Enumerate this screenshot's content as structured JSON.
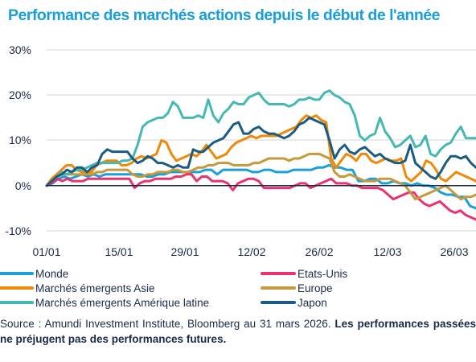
{
  "title": "Performance des marchés actions depuis le début de l'année",
  "source_prefix": "Source : Amundi Investment Institute, Bloomberg au 31 mars 2026. ",
  "source_bold": "Les performances passées ne préjugent pas des performances futures.",
  "chart_data": {
    "type": "line",
    "x_ticks": [
      "01/01",
      "15/01",
      "29/01",
      "12/02",
      "26/02",
      "12/03",
      "26/03"
    ],
    "y_ticks": [
      "30%",
      "20%",
      "10%",
      "0%",
      "-10%"
    ],
    "ylim": [
      -10,
      30
    ],
    "grid": "horizontal",
    "legend_position": "bottom",
    "series": [
      {
        "name": "Monde",
        "color": "#1a9fd8",
        "values": [
          0,
          0.5,
          1.5,
          2,
          1.5,
          2,
          2.5,
          2,
          2.5,
          2,
          2.5,
          2.5,
          2.5,
          2.5,
          2.5,
          2.5,
          2.5,
          2,
          2,
          2.5,
          2.5,
          3,
          3,
          3,
          3,
          3,
          3,
          3.5,
          3.5,
          2.5,
          3.5,
          3.5,
          3.5,
          3.5,
          3.5,
          3,
          3,
          3.5,
          3.5,
          3,
          3,
          3,
          3.5,
          3.5,
          3.5,
          3.5,
          4,
          4,
          4.5,
          4,
          4,
          3.5,
          3.5,
          1,
          1,
          1.5,
          1.5,
          0.5,
          0.5,
          1,
          0.5,
          0.5,
          0,
          0.5,
          0,
          0,
          -0.5,
          -1.5,
          -2,
          -2,
          -2.5,
          -2.5,
          -4.5,
          -5
        ]
      },
      {
        "name": "Etats-Unis",
        "color": "#e8336e",
        "values": [
          0,
          0.5,
          1.5,
          1,
          1.5,
          1,
          1,
          1,
          1.5,
          1.5,
          1.5,
          1.5,
          1.5,
          1.5,
          1.5,
          1.5,
          1.5,
          -0.5,
          0.5,
          1,
          1,
          1.5,
          1.5,
          1.5,
          1.5,
          2,
          2,
          2.5,
          2.5,
          1,
          2,
          2,
          1,
          1,
          1,
          0.5,
          -1,
          0.5,
          1,
          1.5,
          1.5,
          1,
          -0.5,
          -0.5,
          -0.5,
          -0.5,
          -0.5,
          -0.5,
          0,
          0.5,
          0.5,
          -0.5,
          0,
          0.5,
          1,
          1.5,
          0.5,
          0.5,
          0.5,
          0,
          0,
          -0.5,
          -0.5,
          -0.5,
          -0.5,
          -1,
          -2,
          -3,
          -2.5,
          -2,
          -1.5,
          -1.5,
          -3,
          -4,
          -4.5,
          -4,
          -3.5,
          -4.5,
          -5.5,
          -6,
          -5.5,
          -6.5,
          -7,
          -7.5
        ]
      },
      {
        "name": "Marchés émergents Asie",
        "color": "#f0880a",
        "values": [
          0,
          1.5,
          2.5,
          3.5,
          4.5,
          4.5,
          3.5,
          3,
          3,
          3,
          4.5,
          5,
          5.5,
          5.5,
          5.5,
          4.5,
          4.5,
          5,
          6,
          6.5,
          6,
          6.5,
          7,
          10,
          9.5,
          7,
          5.5,
          6,
          6.5,
          7,
          6.5,
          7.5,
          9,
          7.5,
          6,
          6.5,
          7,
          8.5,
          9.5,
          10,
          10.5,
          11,
          10.5,
          11,
          11,
          11,
          11,
          11.5,
          12,
          12.5,
          13,
          14.5,
          15.5,
          15,
          15.5,
          14.5,
          14,
          6,
          4,
          5.5,
          7,
          6.5,
          5.5,
          7,
          7,
          5.5,
          5,
          5.5,
          6,
          5.5,
          5.5,
          6,
          2,
          1,
          2,
          3,
          5.5,
          5,
          3.5,
          1.5,
          1,
          2,
          3,
          2.5,
          2,
          1.5,
          1
        ]
      },
      {
        "name": "Europe",
        "color": "#c49a3c",
        "values": [
          0,
          1,
          2,
          2.5,
          2.5,
          2.5,
          2.5,
          2.5,
          2.5,
          2.5,
          3,
          3,
          3.5,
          3.5,
          3.5,
          3.5,
          3.5,
          2.5,
          2,
          2,
          2.5,
          2.5,
          3,
          3,
          3,
          3.5,
          3.5,
          3,
          3,
          3.5,
          4,
          4,
          4.5,
          4.5,
          5,
          5,
          5,
          4.5,
          4.5,
          4.5,
          4.5,
          5,
          5,
          5.5,
          6,
          6,
          6,
          6,
          5.5,
          6,
          6,
          6.5,
          7,
          7,
          7,
          6.5,
          6,
          3,
          2,
          2,
          2.5,
          2,
          1.5,
          1,
          1,
          1,
          1.5,
          1.5,
          1.5,
          1,
          0.5,
          0,
          -1.5,
          -3,
          -2.5,
          -2,
          -1.5,
          -1,
          -0.5,
          0,
          -1,
          -2,
          -3,
          -2.5,
          -2.5,
          -2
        ]
      },
      {
        "name": "Marchés émergents Amérique latine",
        "color": "#45b8b2",
        "values": [
          0,
          1,
          2,
          3,
          2.5,
          3,
          3.5,
          3.5,
          4,
          4.5,
          5,
          5,
          5,
          5,
          5,
          5.5,
          5.5,
          6,
          9,
          13,
          14,
          14.5,
          15,
          15,
          16,
          18.5,
          17.5,
          15,
          15,
          15,
          15.5,
          15,
          19,
          15.5,
          14,
          16,
          17,
          18.5,
          18,
          18,
          19.5,
          20,
          20.5,
          19,
          18,
          18,
          18,
          18,
          17.5,
          18,
          19,
          19,
          19.5,
          19,
          19,
          20.5,
          21,
          20,
          19.5,
          18.5,
          18,
          15.5,
          11,
          10,
          11,
          11.5,
          15,
          12,
          10.5,
          8.5,
          9,
          10,
          11,
          8.5,
          9,
          11,
          7,
          6.5,
          8,
          9,
          9.5,
          11.5,
          13,
          10.5,
          10.5,
          10.5
        ]
      },
      {
        "name": "Japon",
        "color": "#1d5c82",
        "values": [
          0,
          1,
          2,
          2.5,
          3.5,
          3,
          4,
          4,
          3,
          4,
          4.5,
          7,
          8,
          7.5,
          7.5,
          7.5,
          7.5,
          6,
          5,
          5.5,
          6.5,
          6,
          5,
          5,
          4.5,
          4,
          4.5,
          4,
          4,
          8,
          7.5,
          7.5,
          8.5,
          9.5,
          10,
          10.5,
          12,
          13.5,
          14,
          11.5,
          11.5,
          12.5,
          13,
          12,
          11.5,
          11.5,
          11,
          10.5,
          11,
          12,
          13.5,
          14,
          15,
          14.5,
          14,
          13.5,
          10,
          6,
          8,
          9,
          7.5,
          7,
          8,
          8.5,
          7.5,
          6.5,
          7,
          6,
          5.5,
          5,
          5,
          5.5,
          9,
          5,
          4,
          3,
          2,
          1.5,
          3,
          5,
          6.5,
          6.5,
          6,
          6.5,
          5,
          4
        ]
      }
    ]
  }
}
